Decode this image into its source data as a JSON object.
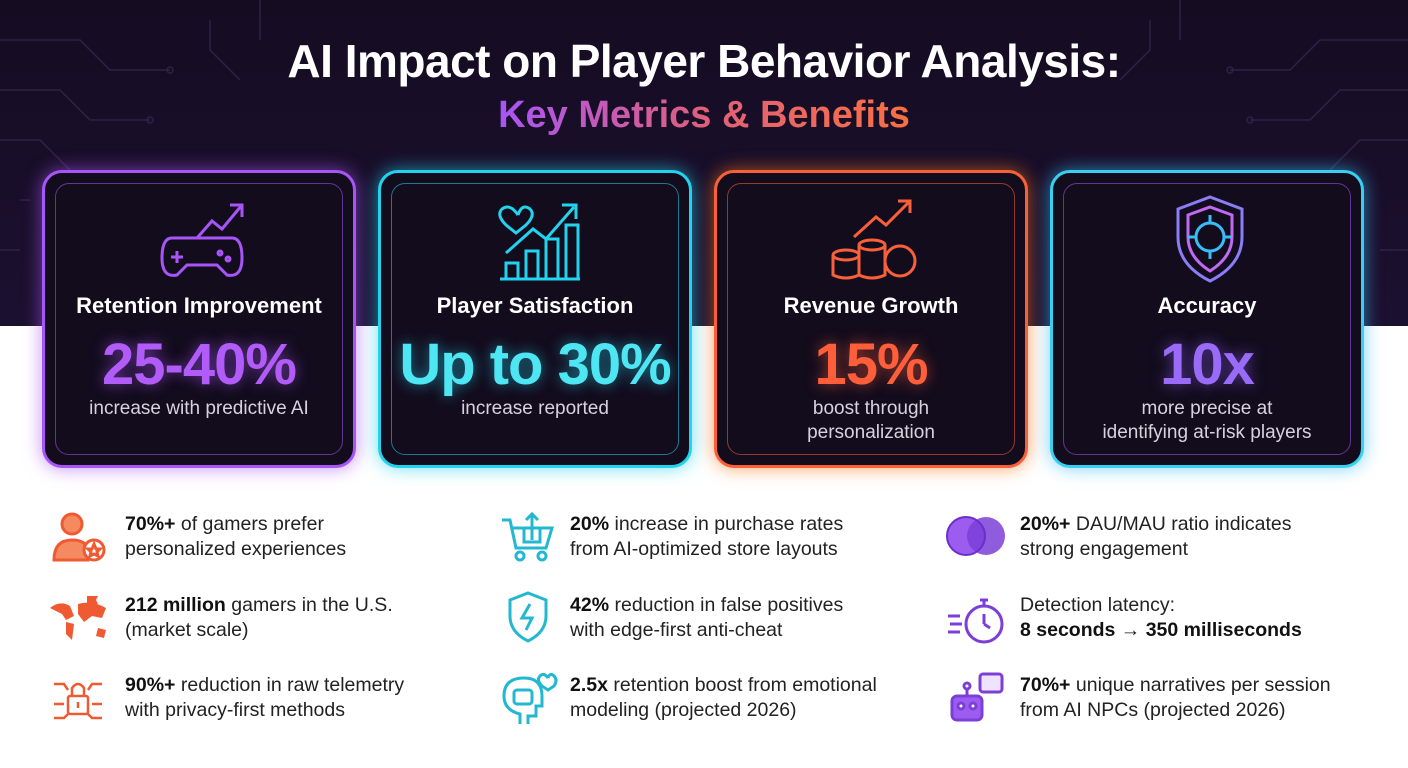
{
  "header": {
    "title": "AI Impact on Player Behavior Analysis:",
    "subtitle": "Key Metrics & Benefits"
  },
  "cards": [
    {
      "title": "Retention Improvement",
      "value": "25-40%",
      "description": [
        "increase with predictive AI"
      ]
    },
    {
      "title": "Player Satisfaction",
      "value": "Up to 30%",
      "description": [
        "increase reported"
      ]
    },
    {
      "title": "Revenue Growth",
      "value": "15%",
      "description": [
        "boost through",
        "personalization"
      ]
    },
    {
      "title": "Accuracy",
      "value": "10x",
      "description": [
        "more precise at",
        "identifying at-risk players"
      ]
    }
  ],
  "facts": [
    {
      "lines": [
        [
          {
            "text": "70%+",
            "bold": true
          },
          {
            "text": "of gamers prefer"
          }
        ],
        [
          {
            "text": "personalized experiences"
          }
        ]
      ]
    },
    {
      "lines": [
        [
          {
            "text": "212 million",
            "bold": true
          },
          {
            "text": "gamers in the U.S."
          }
        ],
        [
          {
            "text": "(market scale)"
          }
        ]
      ]
    },
    {
      "lines": [
        [
          {
            "text": "90%+",
            "bold": true
          },
          {
            "text": "reduction in raw telemetry"
          }
        ],
        [
          {
            "text": "with privacy-first methods"
          }
        ]
      ]
    },
    {
      "lines": [
        [
          {
            "text": "20%",
            "bold": true
          },
          {
            "text": "increase in purchase rates"
          }
        ],
        [
          {
            "text": "from AI-optimized store layouts"
          }
        ]
      ]
    },
    {
      "lines": [
        [
          {
            "text": "42%",
            "bold": true
          },
          {
            "text": "reduction in false positives"
          }
        ],
        [
          {
            "text": "with edge-first anti-cheat"
          }
        ]
      ]
    },
    {
      "lines": [
        [
          {
            "text": "2.5x",
            "bold": true
          },
          {
            "text": "retention boost from emotional"
          }
        ],
        [
          {
            "text": "modeling (projected 2026)"
          }
        ]
      ]
    },
    {
      "lines": [
        [
          {
            "text": "20%+",
            "bold": true
          },
          {
            "text": "DAU/MAU ratio indicates"
          }
        ],
        [
          {
            "text": "strong engagement"
          }
        ]
      ]
    },
    {
      "lines": [
        [
          {
            "text": "Detection latency:"
          }
        ],
        [
          {
            "text": "8 seconds → 350 milliseconds",
            "bold": true
          }
        ]
      ]
    },
    {
      "lines": [
        [
          {
            "text": "70%+",
            "bold": true
          },
          {
            "text": "unique narratives per session"
          }
        ],
        [
          {
            "text": "from AI NPCs (projected 2026)"
          }
        ]
      ]
    }
  ]
}
